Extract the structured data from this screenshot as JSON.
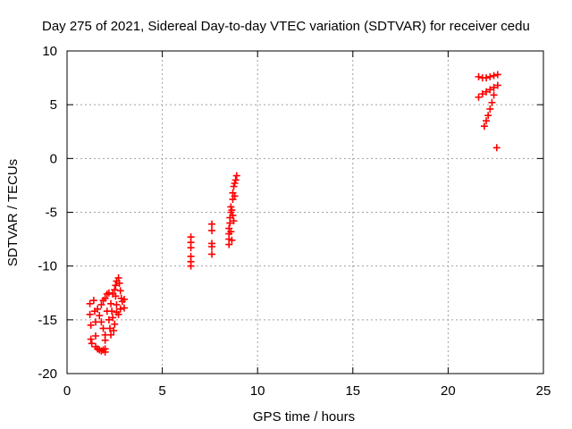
{
  "chart_data": {
    "type": "scatter",
    "title": "Day 275 of 2021, Sidereal Day-to-day VTEC variation (SDTVAR) for receiver cedu",
    "xlabel": "GPS time / hours",
    "ylabel": "SDTVAR / TECUs",
    "xlim": [
      0,
      25
    ],
    "ylim": [
      -20,
      10
    ],
    "x_ticks": [
      0,
      5,
      10,
      15,
      20,
      25
    ],
    "y_ticks": [
      -20,
      -15,
      -10,
      -5,
      0,
      5,
      10
    ],
    "grid": true,
    "marker": "+",
    "series": [
      {
        "name": "SDTVAR",
        "color": "#ff0000",
        "points": [
          [
            1.2,
            -13.5
          ],
          [
            1.2,
            -14.5
          ],
          [
            1.25,
            -15.5
          ],
          [
            1.25,
            -16.8
          ],
          [
            1.3,
            -17.2
          ],
          [
            1.4,
            -13.2
          ],
          [
            1.45,
            -14.2
          ],
          [
            1.5,
            -15.2
          ],
          [
            1.5,
            -16.5
          ],
          [
            1.5,
            -17.5
          ],
          [
            1.6,
            -17.7
          ],
          [
            1.7,
            -17.8
          ],
          [
            1.8,
            -17.9
          ],
          [
            1.9,
            -17.8
          ],
          [
            2.0,
            -17.7
          ],
          [
            2.0,
            -18.0
          ],
          [
            1.6,
            -14.0
          ],
          [
            1.7,
            -14.6
          ],
          [
            1.8,
            -15.2
          ],
          [
            1.9,
            -15.8
          ],
          [
            2.0,
            -16.4
          ],
          [
            2.0,
            -16.9
          ],
          [
            1.8,
            -13.6
          ],
          [
            1.9,
            -13.2
          ],
          [
            2.0,
            -13.0
          ],
          [
            2.1,
            -12.6
          ],
          [
            2.2,
            -12.5
          ],
          [
            2.1,
            -14.2
          ],
          [
            2.2,
            -15.0
          ],
          [
            2.25,
            -15.8
          ],
          [
            2.3,
            -16.4
          ],
          [
            2.3,
            -13.5
          ],
          [
            2.35,
            -14.2
          ],
          [
            2.4,
            -14.8
          ],
          [
            2.4,
            -12.6
          ],
          [
            2.5,
            -12.2
          ],
          [
            2.55,
            -12.8
          ],
          [
            2.6,
            -13.6
          ],
          [
            2.6,
            -14.3
          ],
          [
            2.55,
            -11.8
          ],
          [
            2.6,
            -11.4
          ],
          [
            2.7,
            -11.1
          ],
          [
            2.75,
            -11.6
          ],
          [
            2.8,
            -12.3
          ],
          [
            2.85,
            -13.0
          ],
          [
            2.9,
            -13.3
          ],
          [
            3.0,
            -13.1
          ],
          [
            3.0,
            -13.9
          ],
          [
            2.45,
            -16.0
          ],
          [
            2.5,
            -15.4
          ],
          [
            2.7,
            -14.5
          ],
          [
            2.8,
            -14.0
          ],
          [
            6.5,
            -7.3
          ],
          [
            6.5,
            -7.8
          ],
          [
            6.5,
            -8.3
          ],
          [
            6.5,
            -9.1
          ],
          [
            6.5,
            -9.6
          ],
          [
            6.5,
            -10.0
          ],
          [
            7.6,
            -6.1
          ],
          [
            7.6,
            -6.7
          ],
          [
            7.6,
            -7.9
          ],
          [
            7.6,
            -8.2
          ],
          [
            7.6,
            -8.9
          ],
          [
            8.5,
            -8.0
          ],
          [
            8.5,
            -7.5
          ],
          [
            8.5,
            -7.0
          ],
          [
            8.5,
            -6.5
          ],
          [
            8.55,
            -6.0
          ],
          [
            8.55,
            -5.5
          ],
          [
            8.6,
            -5.0
          ],
          [
            8.6,
            -4.5
          ],
          [
            8.65,
            -4.8
          ],
          [
            8.7,
            -5.3
          ],
          [
            8.7,
            -3.8
          ],
          [
            8.7,
            -3.2
          ],
          [
            8.75,
            -2.6
          ],
          [
            8.8,
            -2.3
          ],
          [
            8.8,
            -3.5
          ],
          [
            8.85,
            -2.0
          ],
          [
            8.9,
            -1.6
          ],
          [
            8.75,
            -5.8
          ],
          [
            8.6,
            -6.8
          ],
          [
            8.65,
            -7.6
          ],
          [
            21.6,
            7.6
          ],
          [
            21.8,
            7.5
          ],
          [
            22.0,
            7.5
          ],
          [
            22.2,
            7.6
          ],
          [
            22.4,
            7.7
          ],
          [
            22.6,
            7.8
          ],
          [
            21.6,
            5.7
          ],
          [
            21.8,
            6.0
          ],
          [
            22.0,
            6.2
          ],
          [
            22.2,
            6.4
          ],
          [
            22.4,
            6.6
          ],
          [
            22.6,
            6.8
          ],
          [
            22.4,
            5.9
          ],
          [
            22.3,
            5.2
          ],
          [
            22.2,
            4.6
          ],
          [
            22.1,
            4.0
          ],
          [
            22.0,
            3.5
          ],
          [
            21.9,
            3.0
          ],
          [
            22.55,
            1.0
          ]
        ]
      }
    ]
  }
}
